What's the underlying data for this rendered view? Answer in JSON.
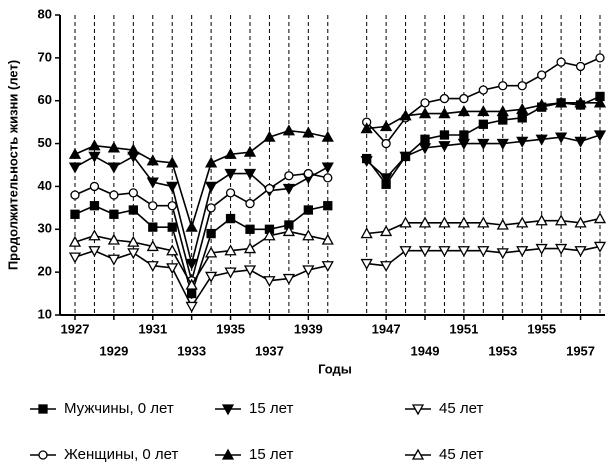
{
  "chart_data": {
    "type": "line",
    "xlabel": "Годы",
    "ylabel": "Продолжительность жизни (лет)",
    "categories": [
      "1927",
      null,
      "1929",
      null,
      "1931",
      null,
      "1933",
      null,
      "1935",
      null,
      "1937",
      null,
      "1939",
      null,
      null,
      null,
      "1947",
      null,
      "1949",
      null,
      "1951",
      null,
      "1953",
      null,
      "1955",
      null,
      "1957",
      null
    ],
    "ylim": [
      10,
      80
    ],
    "yticks": [
      10,
      20,
      30,
      40,
      50,
      60,
      70,
      80
    ],
    "grid": "x-dashed",
    "series": [
      {
        "name": "Мужчины, 0 лет",
        "color": "#000000",
        "marker": "square",
        "filled": true,
        "values": [
          33.5,
          35.5,
          33.5,
          34.5,
          30.5,
          30.5,
          15,
          29,
          32.5,
          30,
          30,
          31,
          34.5,
          35.5,
          null,
          46.5,
          40.5,
          47,
          51,
          52,
          52,
          54.5,
          55.5,
          56,
          58.5,
          59.5,
          59,
          61
        ]
      },
      {
        "name": "15 лет",
        "color": "#000000",
        "marker": "triangle-down",
        "filled": true,
        "values": [
          44.5,
          47,
          44.5,
          47,
          41,
          40,
          22,
          40,
          43,
          43,
          39,
          39.5,
          42,
          44.5,
          null,
          46,
          42,
          47,
          49,
          49.5,
          50,
          50,
          50,
          50.5,
          51,
          51.5,
          50.5,
          52
        ]
      },
      {
        "name": "45 лет",
        "color": "#000000",
        "marker": "triangle-down",
        "filled": false,
        "values": [
          23.5,
          25,
          23,
          24.5,
          21.5,
          21,
          12,
          19,
          20,
          20.5,
          18,
          18.5,
          20.5,
          21.5,
          null,
          22,
          21.5,
          25,
          25,
          25,
          25,
          25,
          24.5,
          25,
          25.5,
          25.5,
          25,
          26
        ]
      },
      {
        "name": "Женщины, 0 лет",
        "color": "#000000",
        "marker": "circle",
        "filled": false,
        "values": [
          38,
          40,
          38,
          38.5,
          35.5,
          35.5,
          18,
          35,
          38.5,
          36,
          39.5,
          42.5,
          43,
          42,
          null,
          55,
          50,
          56,
          59.5,
          60.5,
          60.5,
          62.5,
          63.5,
          63.5,
          66,
          69,
          68,
          70
        ]
      },
      {
        "name": "15 лет",
        "color": "#000000",
        "marker": "triangle-up",
        "filled": true,
        "values": [
          47.5,
          49.5,
          49,
          48.5,
          46,
          45.5,
          30.5,
          45.5,
          47.5,
          48,
          51.5,
          53,
          52.5,
          51.5,
          null,
          53.5,
          54,
          56.5,
          57,
          57,
          57.5,
          57.5,
          57.5,
          58,
          59,
          59.5,
          59.5,
          59.5
        ]
      },
      {
        "name": "45 лет",
        "color": "#000000",
        "marker": "triangle-up",
        "filled": false,
        "values": [
          27,
          28.5,
          27.5,
          27,
          26,
          25,
          17,
          24.5,
          25,
          25.5,
          28.5,
          29.5,
          28.5,
          27.5,
          null,
          29,
          29.5,
          31.5,
          31.5,
          31.5,
          31.5,
          31.5,
          31,
          31.5,
          32,
          32,
          31.5,
          32.5
        ]
      }
    ]
  }
}
